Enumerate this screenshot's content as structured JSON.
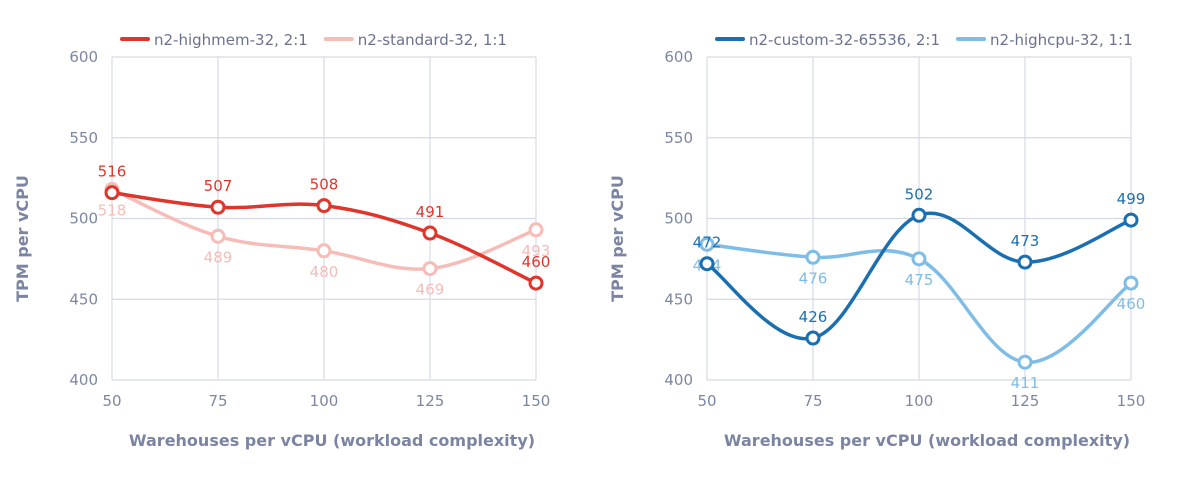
{
  "chart_data": [
    {
      "type": "line",
      "x": [
        50,
        75,
        100,
        125,
        150
      ],
      "xlabel": "Warehouses per vCPU (workload complexity)",
      "ylabel": "TPM per vCPU",
      "xlim": [
        50,
        150
      ],
      "ylim": [
        400,
        600
      ],
      "yticks": [
        400,
        450,
        500,
        550,
        600
      ],
      "xticks": [
        50,
        75,
        100,
        125,
        150
      ],
      "grid": true,
      "legend_position": "top",
      "series": [
        {
          "name": "n2-highmem-32, 2:1",
          "color": "#e0352b",
          "label_position": "above",
          "values": [
            516,
            507,
            508,
            491,
            460
          ]
        },
        {
          "name": "n2-standard-32, 1:1",
          "color": "#f6bcb8",
          "label_position": "below",
          "values": [
            518,
            489,
            480,
            469,
            493
          ]
        }
      ]
    },
    {
      "type": "line",
      "x": [
        50,
        75,
        100,
        125,
        150
      ],
      "xlabel": "Warehouses per vCPU (workload complexity)",
      "ylabel": "TPM per vCPU",
      "xlim": [
        50,
        150
      ],
      "ylim": [
        400,
        600
      ],
      "yticks": [
        400,
        450,
        500,
        550,
        600
      ],
      "xticks": [
        50,
        75,
        100,
        125,
        150
      ],
      "grid": true,
      "legend_position": "top",
      "series": [
        {
          "name": "n2-custom-32-65536, 2:1",
          "color": "#1a6fb0",
          "label_position": "above",
          "values": [
            472,
            426,
            502,
            473,
            499
          ]
        },
        {
          "name": "n2-highcpu-32, 1:1",
          "color": "#7fbde6",
          "label_position": "below",
          "values": [
            484,
            476,
            475,
            411,
            460
          ]
        }
      ]
    }
  ]
}
